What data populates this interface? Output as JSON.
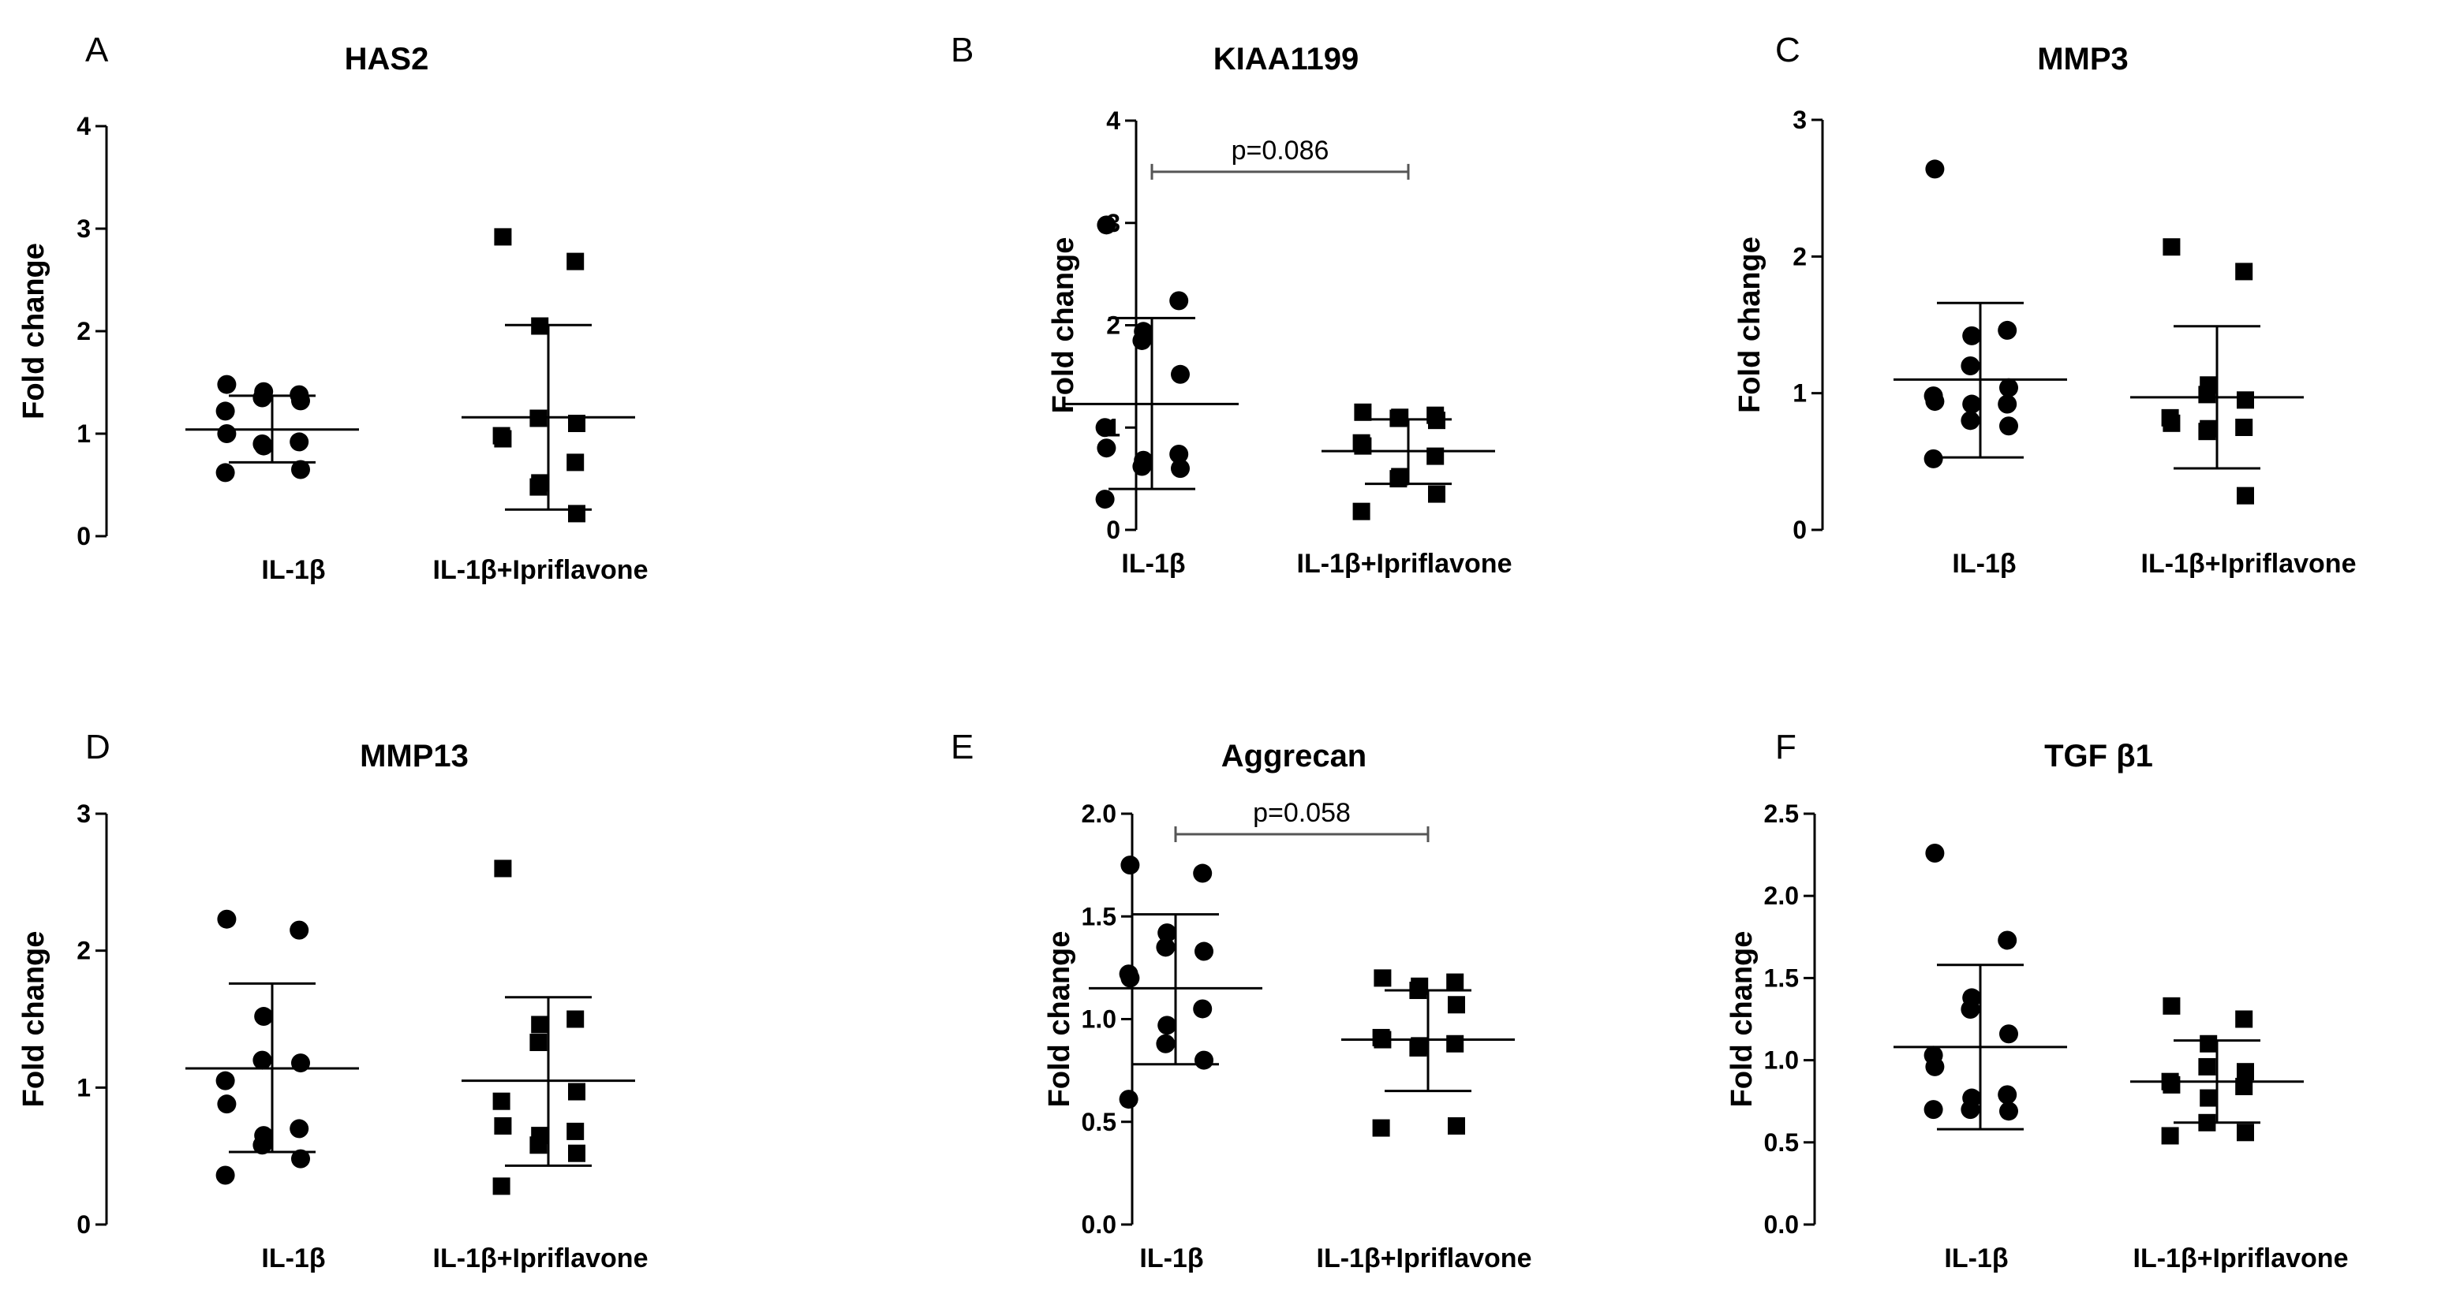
{
  "chart_data": [
    {
      "type": "scatter",
      "panel": "A",
      "title": "HAS2",
      "ylabel": "Fold change",
      "ylim": [
        0,
        4
      ],
      "yticks": [
        "0",
        "1",
        "2",
        "3",
        "4"
      ],
      "categories": [
        "IL-1β",
        "IL-1β+Ipriflavone"
      ],
      "series": [
        {
          "marker": "circle",
          "values": [
            1.48,
            1.38,
            1.41,
            1.35,
            1.32,
            1.22,
            1.0,
            0.92,
            0.88,
            0.9,
            0.65,
            0.62
          ],
          "mean": 1.04,
          "sd_low": 0.72,
          "sd_high": 1.37
        },
        {
          "marker": "square",
          "values": [
            2.92,
            2.68,
            2.05,
            1.15,
            1.1,
            0.98,
            0.95,
            0.72,
            0.52,
            0.48,
            0.22
          ],
          "mean": 1.16,
          "sd_low": 0.26,
          "sd_high": 2.06
        }
      ],
      "annotation": null
    },
    {
      "type": "scatter",
      "panel": "B",
      "title": "KIAA1199",
      "ylabel": "Fold change",
      "ylim": [
        0,
        4
      ],
      "yticks": [
        "0",
        "1",
        "2",
        "3",
        "4"
      ],
      "categories": [
        "IL-1β",
        "IL-1β+Ipriflavone"
      ],
      "series": [
        {
          "marker": "circle",
          "values": [
            2.98,
            2.24,
            1.94,
            1.85,
            1.52,
            1.0,
            0.8,
            0.74,
            0.68,
            0.62,
            0.6,
            0.3
          ],
          "mean": 1.23,
          "sd_low": 0.4,
          "sd_high": 2.07
        },
        {
          "marker": "square",
          "values": [
            1.15,
            1.12,
            1.1,
            1.09,
            1.07,
            0.85,
            0.82,
            0.72,
            0.52,
            0.5,
            0.35,
            0.18
          ],
          "mean": 0.77,
          "sd_low": 0.45,
          "sd_high": 1.08
        }
      ],
      "annotation": {
        "text": "p=0.086",
        "y": 3.5
      }
    },
    {
      "type": "scatter",
      "panel": "C",
      "title": "MMP3",
      "ylabel": "Fold change",
      "ylim": [
        0,
        3
      ],
      "yticks": [
        "0",
        "1",
        "2",
        "3"
      ],
      "categories": [
        "IL-1β",
        "IL-1β+Ipriflavone"
      ],
      "series": [
        {
          "marker": "circle",
          "values": [
            2.64,
            1.46,
            1.42,
            1.2,
            1.04,
            0.98,
            0.94,
            0.92,
            0.92,
            0.8,
            0.76,
            0.52
          ],
          "mean": 1.1,
          "sd_low": 0.53,
          "sd_high": 1.66
        },
        {
          "marker": "square",
          "values": [
            2.07,
            1.89,
            1.06,
            0.99,
            0.95,
            0.82,
            0.78,
            0.75,
            0.74,
            0.72,
            0.25
          ],
          "mean": 0.97,
          "sd_low": 0.45,
          "sd_high": 1.49
        }
      ],
      "annotation": null
    },
    {
      "type": "scatter",
      "panel": "D",
      "title": "MMP13",
      "ylabel": "Fold change",
      "ylim": [
        0,
        3
      ],
      "yticks": [
        "0",
        "1",
        "2",
        "3"
      ],
      "categories": [
        "IL-1β",
        "IL-1β+Ipriflavone"
      ],
      "series": [
        {
          "marker": "circle",
          "values": [
            2.23,
            2.15,
            1.52,
            1.2,
            1.18,
            1.05,
            0.88,
            0.7,
            0.65,
            0.58,
            0.48,
            0.36
          ],
          "mean": 1.14,
          "sd_low": 0.53,
          "sd_high": 1.76
        },
        {
          "marker": "square",
          "values": [
            2.6,
            1.5,
            1.46,
            1.33,
            0.97,
            0.9,
            0.72,
            0.68,
            0.65,
            0.58,
            0.52,
            0.28
          ],
          "mean": 1.05,
          "sd_low": 0.43,
          "sd_high": 1.66
        }
      ],
      "annotation": null
    },
    {
      "type": "scatter",
      "panel": "E",
      "title": "Aggrecan",
      "ylabel": "Fold change",
      "ylim": [
        0,
        2.0
      ],
      "yticks": [
        "0.0",
        "0.5",
        "1.0",
        "1.5",
        "2.0"
      ],
      "categories": [
        "IL-1β",
        "IL-1β+Ipriflavone"
      ],
      "series": [
        {
          "marker": "circle",
          "values": [
            1.75,
            1.71,
            1.42,
            1.35,
            1.33,
            1.22,
            1.2,
            1.05,
            0.97,
            0.88,
            0.8,
            0.61
          ],
          "mean": 1.15,
          "sd_low": 0.78,
          "sd_high": 1.51
        },
        {
          "marker": "square",
          "values": [
            1.2,
            1.18,
            1.16,
            1.14,
            1.07,
            0.91,
            0.9,
            0.88,
            0.87,
            0.86,
            0.48,
            0.47
          ],
          "mean": 0.9,
          "sd_low": 0.65,
          "sd_high": 1.14
        }
      ],
      "annotation": {
        "text": "p=0.058",
        "y": 1.9
      }
    },
    {
      "type": "scatter",
      "panel": "F",
      "title": "TGF β1",
      "ylabel": "Fold change",
      "ylim": [
        0,
        2.5
      ],
      "yticks": [
        "0.0",
        "0.5",
        "1.0",
        "1.5",
        "2.0",
        "2.5"
      ],
      "categories": [
        "IL-1β",
        "IL-1β+Ipriflavone"
      ],
      "series": [
        {
          "marker": "circle",
          "values": [
            2.26,
            1.73,
            1.38,
            1.31,
            1.16,
            1.03,
            0.96,
            0.79,
            0.77,
            0.7,
            0.69,
            0.7
          ],
          "mean": 1.08,
          "sd_low": 0.58,
          "sd_high": 1.58
        },
        {
          "marker": "square",
          "values": [
            1.33,
            1.25,
            1.1,
            0.96,
            0.93,
            0.87,
            0.85,
            0.84,
            0.77,
            0.62,
            0.56,
            0.54
          ],
          "mean": 0.87,
          "sd_low": 0.62,
          "sd_high": 1.12
        }
      ],
      "annotation": null
    }
  ]
}
